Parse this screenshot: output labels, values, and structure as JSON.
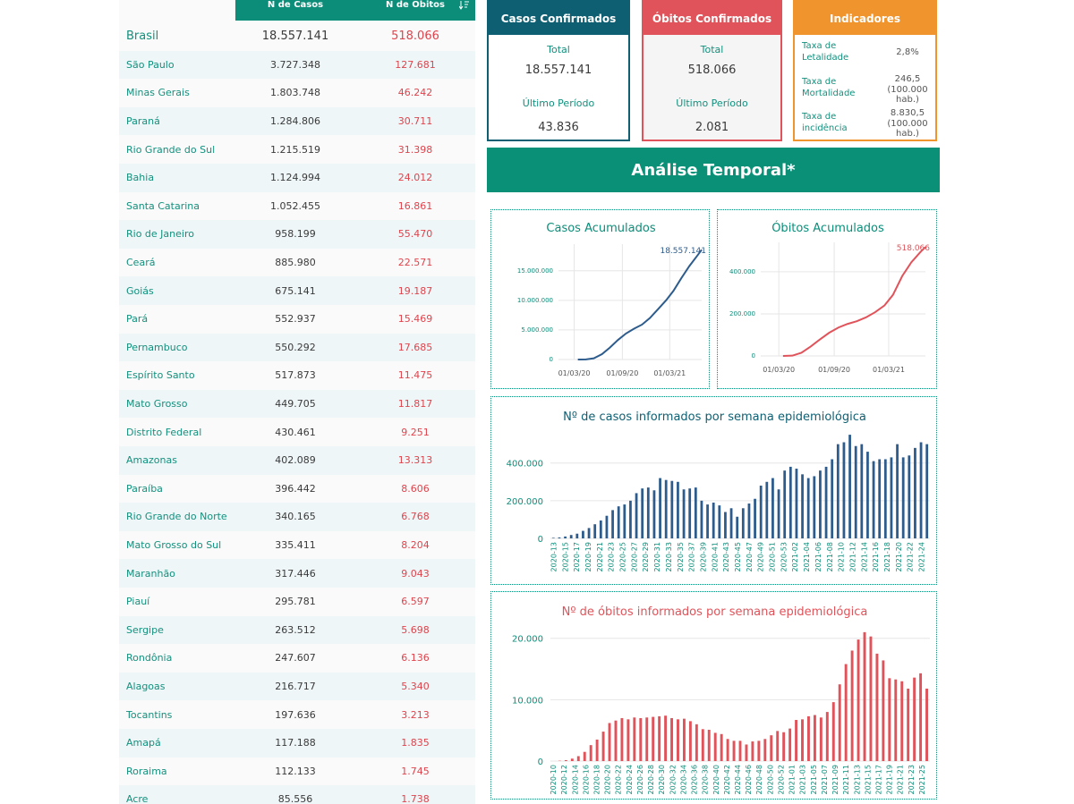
{
  "table": {
    "col_cases": "N de Casos",
    "col_deaths": "N de Óbitos",
    "rows": [
      {
        "name": "Brasil",
        "cases": "18.557.141",
        "deaths": "518.066"
      },
      {
        "name": "São Paulo",
        "cases": "3.727.348",
        "deaths": "127.681"
      },
      {
        "name": "Minas Gerais",
        "cases": "1.803.748",
        "deaths": "46.242"
      },
      {
        "name": "Paraná",
        "cases": "1.284.806",
        "deaths": "30.711"
      },
      {
        "name": "Rio Grande do Sul",
        "cases": "1.215.519",
        "deaths": "31.398"
      },
      {
        "name": "Bahia",
        "cases": "1.124.994",
        "deaths": "24.012"
      },
      {
        "name": "Santa Catarina",
        "cases": "1.052.455",
        "deaths": "16.861"
      },
      {
        "name": "Rio de Janeiro",
        "cases": "958.199",
        "deaths": "55.470"
      },
      {
        "name": "Ceará",
        "cases": "885.980",
        "deaths": "22.571"
      },
      {
        "name": "Goiás",
        "cases": "675.141",
        "deaths": "19.187"
      },
      {
        "name": "Pará",
        "cases": "552.937",
        "deaths": "15.469"
      },
      {
        "name": "Pernambuco",
        "cases": "550.292",
        "deaths": "17.685"
      },
      {
        "name": "Espírito Santo",
        "cases": "517.873",
        "deaths": "11.475"
      },
      {
        "name": "Mato Grosso",
        "cases": "449.705",
        "deaths": "11.817"
      },
      {
        "name": "Distrito Federal",
        "cases": "430.461",
        "deaths": "9.251"
      },
      {
        "name": "Amazonas",
        "cases": "402.089",
        "deaths": "13.313"
      },
      {
        "name": "Paraíba",
        "cases": "396.442",
        "deaths": "8.606"
      },
      {
        "name": "Rio Grande do Norte",
        "cases": "340.165",
        "deaths": "6.768"
      },
      {
        "name": "Mato Grosso do Sul",
        "cases": "335.411",
        "deaths": "8.204"
      },
      {
        "name": "Maranhão",
        "cases": "317.446",
        "deaths": "9.043"
      },
      {
        "name": "Piauí",
        "cases": "295.781",
        "deaths": "6.597"
      },
      {
        "name": "Sergipe",
        "cases": "263.512",
        "deaths": "5.698"
      },
      {
        "name": "Rondônia",
        "cases": "247.607",
        "deaths": "6.136"
      },
      {
        "name": "Alagoas",
        "cases": "216.717",
        "deaths": "5.340"
      },
      {
        "name": "Tocantins",
        "cases": "197.636",
        "deaths": "3.213"
      },
      {
        "name": "Amapá",
        "cases": "117.188",
        "deaths": "1.835"
      },
      {
        "name": "Roraima",
        "cases": "112.133",
        "deaths": "1.745"
      },
      {
        "name": "Acre",
        "cases": "85.556",
        "deaths": "1.738"
      }
    ]
  },
  "cards": {
    "cases": {
      "title": "Casos Confirmados",
      "total_label": "Total",
      "total": "18.557.141",
      "period_label": "Último Período",
      "period": "43.836"
    },
    "deaths": {
      "title": "Óbitos Confirmados",
      "total_label": "Total",
      "total": "518.066",
      "period_label": "Último Período",
      "period": "2.081"
    },
    "indicators": {
      "title": "Indicadores",
      "items": [
        {
          "label": "Taxa de Letalidade",
          "value": "2,8%",
          "unit": ""
        },
        {
          "label": "Taxa de Mortalidade",
          "value": "246,5",
          "unit": "(100.000 hab.)"
        },
        {
          "label": "Taxa de incidência",
          "value": "8.830,5",
          "unit": "(100.000 hab.)"
        }
      ]
    }
  },
  "banner": {
    "title": "Análise Temporal*"
  },
  "colors": {
    "teal": "#0b8d79",
    "navy": "#2d5c8c",
    "red": "#e0535a",
    "orange": "#f0942e"
  },
  "icons": {
    "sort": "sort-icon"
  },
  "chart_data": [
    {
      "id": "cum_cases",
      "type": "line",
      "title": "Casos Acumulados",
      "end_label": "18.557.141",
      "yticks": [
        0,
        5000000,
        10000000,
        15000000
      ],
      "ytick_labels": [
        "0",
        "5.000.000",
        "10.000.000",
        "15.000.000"
      ],
      "xtick_labels": [
        "01/03/20",
        "01/09/20",
        "01/03/21"
      ],
      "ylim": [
        0,
        19500000
      ],
      "x": [
        "2020-03-15",
        "2020-04-15",
        "2020-05-15",
        "2020-06-15",
        "2020-07-15",
        "2020-08-15",
        "2020-09-15",
        "2020-10-15",
        "2020-11-15",
        "2020-12-15",
        "2021-01-15",
        "2021-02-15",
        "2021-03-15",
        "2021-04-15",
        "2021-05-15",
        "2021-06-15",
        "2021-07-01"
      ],
      "values": [
        0,
        25000,
        200000,
        900000,
        2000000,
        3300000,
        4400000,
        5200000,
        5900000,
        7000000,
        8500000,
        10000000,
        11600000,
        13800000,
        15800000,
        17600000,
        18557141
      ],
      "color": "#2d5c8c"
    },
    {
      "id": "cum_deaths",
      "type": "line",
      "title": "Óbitos Acumulados",
      "end_label": "518.066",
      "yticks": [
        0,
        200000,
        400000
      ],
      "ytick_labels": [
        "0",
        "200.000",
        "400.000"
      ],
      "xtick_labels": [
        "01/03/20",
        "01/09/20",
        "01/03/21"
      ],
      "ylim": [
        0,
        540000
      ],
      "x": [
        "2020-03-15",
        "2020-04-15",
        "2020-05-15",
        "2020-06-15",
        "2020-07-15",
        "2020-08-15",
        "2020-09-15",
        "2020-10-15",
        "2020-11-15",
        "2020-12-15",
        "2021-01-15",
        "2021-02-15",
        "2021-03-15",
        "2021-04-15",
        "2021-05-15",
        "2021-06-15",
        "2021-07-01"
      ],
      "values": [
        0,
        1500,
        15000,
        45000,
        78000,
        110000,
        135000,
        152000,
        165000,
        183000,
        208000,
        240000,
        290000,
        380000,
        445000,
        495000,
        518066
      ],
      "color": "#e0535a"
    },
    {
      "id": "week_cases",
      "type": "bar",
      "title": "Nº de casos informados por semana epidemiológica",
      "yticks": [
        0,
        200000,
        400000
      ],
      "ytick_labels": [
        "0",
        "200.000",
        "400.000"
      ],
      "ylim": [
        0,
        560000
      ],
      "xtick_labels": [
        "2020-13",
        "2020-15",
        "2020-17",
        "2020-19",
        "2020-21",
        "2020-23",
        "2020-25",
        "2020-27",
        "2020-29",
        "2020-31",
        "2020-33",
        "2020-35",
        "2020-37",
        "2020-39",
        "2020-41",
        "2020-43",
        "2020-45",
        "2020-47",
        "2020-49",
        "2020-51",
        "2020-53",
        "2021-02",
        "2021-04",
        "2021-06",
        "2021-08",
        "2021-10",
        "2021-12",
        "2021-14",
        "2021-16",
        "2021-18",
        "2021-20",
        "2021-22",
        "2021-24"
      ],
      "values": [
        3000,
        5000,
        10000,
        18000,
        25000,
        40000,
        55000,
        75000,
        95000,
        120000,
        150000,
        170000,
        180000,
        200000,
        240000,
        265000,
        270000,
        255000,
        320000,
        310000,
        305000,
        300000,
        260000,
        265000,
        270000,
        200000,
        180000,
        190000,
        175000,
        140000,
        160000,
        115000,
        160000,
        185000,
        210000,
        280000,
        300000,
        320000,
        260000,
        360000,
        380000,
        370000,
        340000,
        320000,
        330000,
        360000,
        380000,
        420000,
        500000,
        510000,
        550000,
        490000,
        500000,
        460000,
        410000,
        420000,
        420000,
        430000,
        500000,
        430000,
        440000,
        480000,
        510000,
        500000
      ],
      "color": "#2d5c8c"
    },
    {
      "id": "week_deaths",
      "type": "bar",
      "title": "Nº de óbitos informados por semana epidemiológica",
      "yticks": [
        0,
        10000,
        20000
      ],
      "ytick_labels": [
        "0",
        "10.000",
        "20.000"
      ],
      "ylim": [
        0,
        22000
      ],
      "xtick_labels": [
        "2020-10",
        "2020-12",
        "2020-14",
        "2020-16",
        "2020-18",
        "2020-20",
        "2020-22",
        "2020-24",
        "2020-26",
        "2020-28",
        "2020-30",
        "2020-32",
        "2020-34",
        "2020-36",
        "2020-38",
        "2020-40",
        "2020-42",
        "2020-44",
        "2020-46",
        "2020-48",
        "2020-50",
        "2020-52",
        "2021-01",
        "2021-03",
        "2021-05",
        "2021-07",
        "2021-09",
        "2021-11",
        "2021-13",
        "2021-15",
        "2021-17",
        "2021-19",
        "2021-21",
        "2021-23",
        "2021-25"
      ],
      "values": [
        0,
        50,
        150,
        400,
        800,
        1500,
        2600,
        3500,
        4800,
        6200,
        6600,
        7000,
        6800,
        7100,
        7000,
        7100,
        7200,
        7300,
        7400,
        7000,
        6800,
        6900,
        6500,
        6000,
        5200,
        5100,
        4600,
        4400,
        3600,
        3300,
        3300,
        2700,
        3200,
        3300,
        3600,
        4200,
        4900,
        4700,
        5300,
        6700,
        6800,
        7300,
        7500,
        7100,
        8000,
        9600,
        12500,
        15800,
        18000,
        19800,
        21000,
        20300,
        17500,
        16400,
        13500,
        13300,
        13000,
        11800,
        13600,
        14300,
        11800
      ],
      "color": "#e0535a"
    }
  ]
}
